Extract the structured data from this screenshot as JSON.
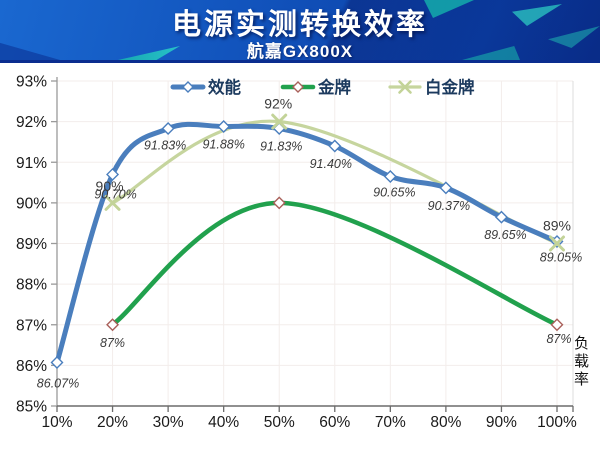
{
  "header": {
    "title": "电源实测转换效率",
    "subtitle": "航嘉GX800X",
    "colors": {
      "banner_blue": "#0b41a8",
      "banner_teal": "#1fb7b0",
      "border": "#0a2d8f"
    }
  },
  "chart_data": {
    "type": "line",
    "title": "电源实测转换效率",
    "subtitle": "航嘉GX800X",
    "x_axis_label": "负载率",
    "x_values": [
      10,
      20,
      30,
      40,
      50,
      60,
      70,
      80,
      90,
      100
    ],
    "x_tick_labels": [
      "10%",
      "20%",
      "30%",
      "40%",
      "50%",
      "60%",
      "70%",
      "80%",
      "90%",
      "100%"
    ],
    "y_tick_labels": [
      "85%",
      "86%",
      "87%",
      "88%",
      "89%",
      "90%",
      "91%",
      "92%",
      "93%"
    ],
    "ylim": [
      85,
      93
    ],
    "grid": true,
    "legend_position": "top",
    "series": [
      {
        "name": "效能",
        "semantic": "efficiency",
        "color": "#4a7ebd",
        "marker": "diamond",
        "marker_stroke": "#4a7ebd",
        "x": [
          10,
          20,
          30,
          40,
          50,
          60,
          70,
          80,
          90,
          100
        ],
        "values": [
          86.07,
          90.7,
          91.83,
          91.88,
          91.83,
          91.4,
          90.65,
          90.37,
          89.65,
          89.05
        ],
        "point_labels": [
          "86.07%",
          "90.70%",
          "91.83%",
          "91.88%",
          "91.83%",
          "91.40%",
          "90.65%",
          "90.37%",
          "89.65%",
          "89.05%"
        ],
        "labels_italic": true
      },
      {
        "name": "金牌",
        "semantic": "gold",
        "color": "#21a14d",
        "marker": "diamond",
        "marker_stroke": "#a9605a",
        "x": [
          20,
          50,
          100
        ],
        "values": [
          87,
          90,
          87
        ],
        "point_labels": [
          "87%",
          "",
          "87%"
        ],
        "labels_italic": true
      },
      {
        "name": "白金牌",
        "semantic": "platinum",
        "color": "#c6d59e",
        "marker": "x",
        "marker_stroke": "#c3d398",
        "x": [
          20,
          50,
          100
        ],
        "values": [
          90,
          92,
          89
        ],
        "point_labels": [
          "90%",
          "92%",
          "89%"
        ],
        "labels_italic": false
      }
    ]
  }
}
